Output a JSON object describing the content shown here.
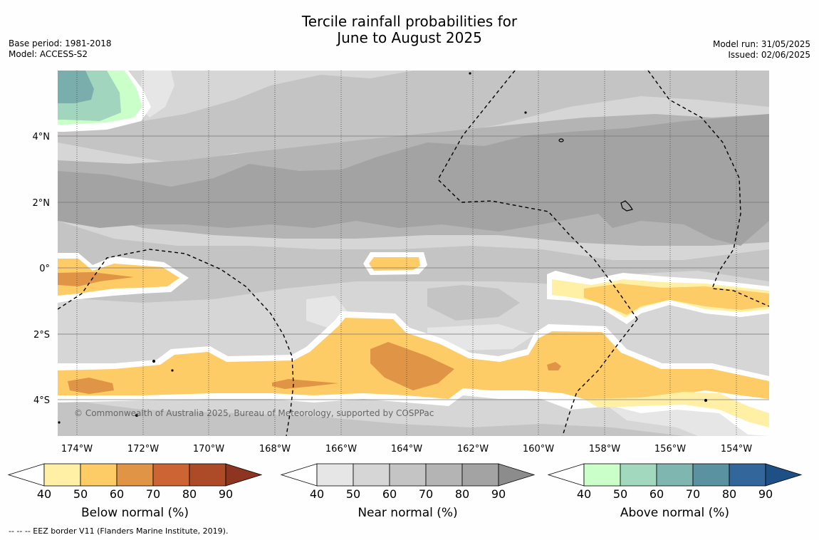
{
  "title": {
    "line1": "Tercile rainfall probabilities for",
    "line2": "June to August 2025"
  },
  "meta_left": {
    "base_period": "Base period: 1981-2018",
    "model": "Model: ACCESS-S2"
  },
  "meta_right": {
    "model_run": "Model run: 31/05/2025",
    "issued": "Issued: 02/06/2025"
  },
  "map": {
    "lat_labels": [
      "4°N",
      "2°N",
      "0°",
      "2°S",
      "4°S"
    ],
    "lon_labels": [
      "174°W",
      "172°W",
      "170°W",
      "168°W",
      "166°W",
      "164°W",
      "162°W",
      "160°W",
      "158°W",
      "156°W",
      "154°W"
    ],
    "copyright": "© Commonwealth of Australia 2025, Bureau of Meteorology, supported by COSPPac",
    "colors": {
      "near_40": "#e6e6e6",
      "near_50": "#d6d6d6",
      "near_60": "#c4c4c4",
      "near_70": "#b4b4b4",
      "near_80": "#a3a3a3",
      "below_50": "#feebа0",
      "below_60": "#fecc66",
      "below_70": "#e09445",
      "above_50": "#caffca",
      "above_60": "#a2d5be",
      "above_70": "#79aead"
    }
  },
  "colorbars": [
    {
      "title": "Below normal (%)",
      "ticks": [
        "40",
        "50",
        "60",
        "70",
        "80",
        "90"
      ],
      "colors": [
        "#fff0a5",
        "#fecc66",
        "#e09445",
        "#cd6433",
        "#ad4a27"
      ],
      "extend_color": "#8d3520"
    },
    {
      "title": "Near normal (%)",
      "ticks": [
        "40",
        "50",
        "60",
        "70",
        "80",
        "90"
      ],
      "colors": [
        "#e6e6e6",
        "#d6d6d6",
        "#c4c4c4",
        "#b4b4b4",
        "#a3a3a3"
      ],
      "extend_color": "#8c8c8c"
    },
    {
      "title": "Above normal (%)",
      "ticks": [
        "40",
        "50",
        "60",
        "70",
        "80",
        "90"
      ],
      "colors": [
        "#caffca",
        "#a2d9be",
        "#80b6b0",
        "#5b92a2",
        "#33669a"
      ],
      "extend_color": "#1e4f85"
    }
  ],
  "footnote": "--  --  -- EEZ border V11 (Flanders Marine Institute, 2019)."
}
